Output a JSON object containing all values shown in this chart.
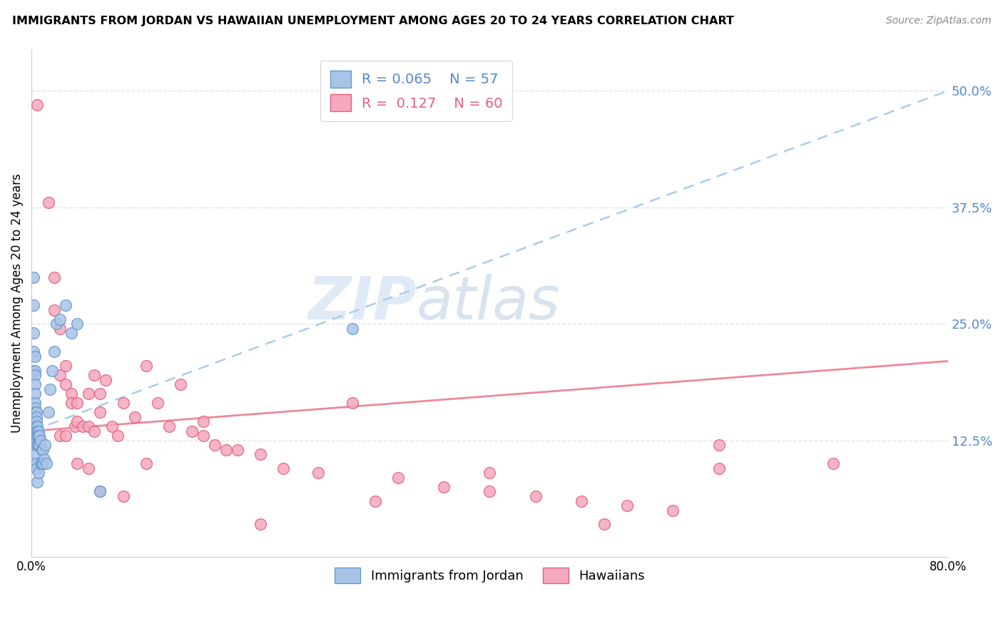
{
  "title": "IMMIGRANTS FROM JORDAN VS HAWAIIAN UNEMPLOYMENT AMONG AGES 20 TO 24 YEARS CORRELATION CHART",
  "source": "Source: ZipAtlas.com",
  "ylabel": "Unemployment Among Ages 20 to 24 years",
  "ytick_labels": [
    "50.0%",
    "37.5%",
    "25.0%",
    "12.5%"
  ],
  "ytick_values": [
    0.5,
    0.375,
    0.25,
    0.125
  ],
  "xlim": [
    0.0,
    0.8
  ],
  "ylim": [
    0.0,
    0.545
  ],
  "color_jordan": "#aac4e8",
  "color_hawaii": "#f5a8be",
  "color_jordan_edge": "#6699cc",
  "color_hawaii_edge": "#e06080",
  "color_jordan_trend": "#aaccee",
  "color_hawaii_trend": "#ee8899",
  "color_right_labels": "#5588cc",
  "background_color": "#ffffff",
  "grid_color": "#dddddd",
  "jordan_trend_x0": 0.0,
  "jordan_trend_y0": 0.135,
  "jordan_trend_x1": 0.8,
  "jordan_trend_y1": 0.5,
  "hawaii_trend_x0": 0.0,
  "hawaii_trend_y0": 0.135,
  "hawaii_trend_x1": 0.8,
  "hawaii_trend_y1": 0.21,
  "jordan_points_x": [
    0.002,
    0.002,
    0.002,
    0.002,
    0.002,
    0.003,
    0.003,
    0.003,
    0.003,
    0.003,
    0.003,
    0.003,
    0.003,
    0.003,
    0.003,
    0.004,
    0.004,
    0.004,
    0.004,
    0.004,
    0.004,
    0.004,
    0.004,
    0.004,
    0.004,
    0.004,
    0.005,
    0.005,
    0.005,
    0.005,
    0.005,
    0.006,
    0.006,
    0.006,
    0.006,
    0.007,
    0.007,
    0.008,
    0.008,
    0.009,
    0.009,
    0.01,
    0.01,
    0.011,
    0.012,
    0.013,
    0.015,
    0.016,
    0.018,
    0.02,
    0.022,
    0.025,
    0.03,
    0.035,
    0.04,
    0.06,
    0.28
  ],
  "jordan_points_y": [
    0.3,
    0.27,
    0.24,
    0.22,
    0.2,
    0.215,
    0.2,
    0.195,
    0.185,
    0.175,
    0.165,
    0.16,
    0.155,
    0.145,
    0.14,
    0.155,
    0.15,
    0.145,
    0.14,
    0.135,
    0.13,
    0.125,
    0.12,
    0.11,
    0.1,
    0.095,
    0.14,
    0.135,
    0.13,
    0.12,
    0.08,
    0.135,
    0.13,
    0.12,
    0.09,
    0.13,
    0.12,
    0.125,
    0.1,
    0.115,
    0.1,
    0.115,
    0.1,
    0.105,
    0.12,
    0.1,
    0.155,
    0.18,
    0.2,
    0.22,
    0.25,
    0.255,
    0.27,
    0.24,
    0.25,
    0.07,
    0.245
  ],
  "hawaii_points_x": [
    0.005,
    0.015,
    0.02,
    0.02,
    0.025,
    0.025,
    0.03,
    0.03,
    0.035,
    0.035,
    0.038,
    0.04,
    0.04,
    0.045,
    0.05,
    0.05,
    0.055,
    0.055,
    0.06,
    0.06,
    0.065,
    0.07,
    0.075,
    0.08,
    0.09,
    0.1,
    0.11,
    0.12,
    0.13,
    0.14,
    0.15,
    0.16,
    0.17,
    0.18,
    0.2,
    0.22,
    0.25,
    0.28,
    0.32,
    0.36,
    0.4,
    0.44,
    0.48,
    0.52,
    0.56,
    0.6,
    0.025,
    0.03,
    0.04,
    0.05,
    0.06,
    0.08,
    0.1,
    0.15,
    0.2,
    0.3,
    0.4,
    0.5,
    0.6,
    0.7
  ],
  "hawaii_points_y": [
    0.485,
    0.38,
    0.3,
    0.265,
    0.245,
    0.195,
    0.205,
    0.185,
    0.175,
    0.165,
    0.14,
    0.165,
    0.145,
    0.14,
    0.175,
    0.14,
    0.195,
    0.135,
    0.175,
    0.155,
    0.19,
    0.14,
    0.13,
    0.165,
    0.15,
    0.205,
    0.165,
    0.14,
    0.185,
    0.135,
    0.13,
    0.12,
    0.115,
    0.115,
    0.11,
    0.095,
    0.09,
    0.165,
    0.085,
    0.075,
    0.07,
    0.065,
    0.06,
    0.055,
    0.05,
    0.12,
    0.13,
    0.13,
    0.1,
    0.095,
    0.07,
    0.065,
    0.1,
    0.145,
    0.035,
    0.06,
    0.09,
    0.035,
    0.095,
    0.1
  ]
}
